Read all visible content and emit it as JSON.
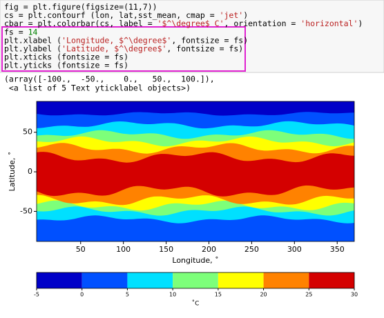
{
  "code": {
    "lines": [
      [
        "fig = plt.figure(figsize=(11,7))"
      ],
      [
        "cs = plt.contourf (lon, lat,sst_mean, cmap = ",
        "'jet'",
        ")"
      ],
      [
        "cbar = plt.colorbar(cs, label = ",
        "'$^\\degree$ C'",
        ", orientation = ",
        "'horizontal'",
        ")"
      ],
      [
        "fs = ",
        "14"
      ],
      [
        "plt.xlabel (",
        "'Longitude, $^\\degree$'",
        ", fontsize = fs)"
      ],
      [
        "plt.ylabel (",
        "'Latitude, $^\\degree$'",
        ", fontsize = fs)"
      ],
      [
        "plt.xticks (fontsize = fs)"
      ],
      [
        "plt.yticks (fontsize = fs)"
      ]
    ]
  },
  "output": {
    "lines": [
      "(array([-100.,  -50.,    0.,   50.,  100.]),",
      " <a list of 5 Text yticklabel objects>)"
    ]
  },
  "chart_data": {
    "type": "contourf",
    "xlabel": "Longitude, ˚",
    "ylabel": "Latitude, ˚",
    "xlim": [
      -1.5,
      370
    ],
    "xticks": [
      50,
      100,
      150,
      200,
      250,
      300,
      350
    ],
    "ylim": [
      -88,
      89
    ],
    "yticks": [
      -50,
      0,
      50
    ],
    "colorbar": {
      "label": "˚C",
      "orientation": "horizontal",
      "levels": [
        -5,
        0,
        5,
        10,
        15,
        20,
        25,
        30
      ],
      "colors": [
        "#0000c8",
        "#0050ff",
        "#00e0ff",
        "#7dff7a",
        "#ffff00",
        "#ff8200",
        "#d40000"
      ]
    }
  }
}
